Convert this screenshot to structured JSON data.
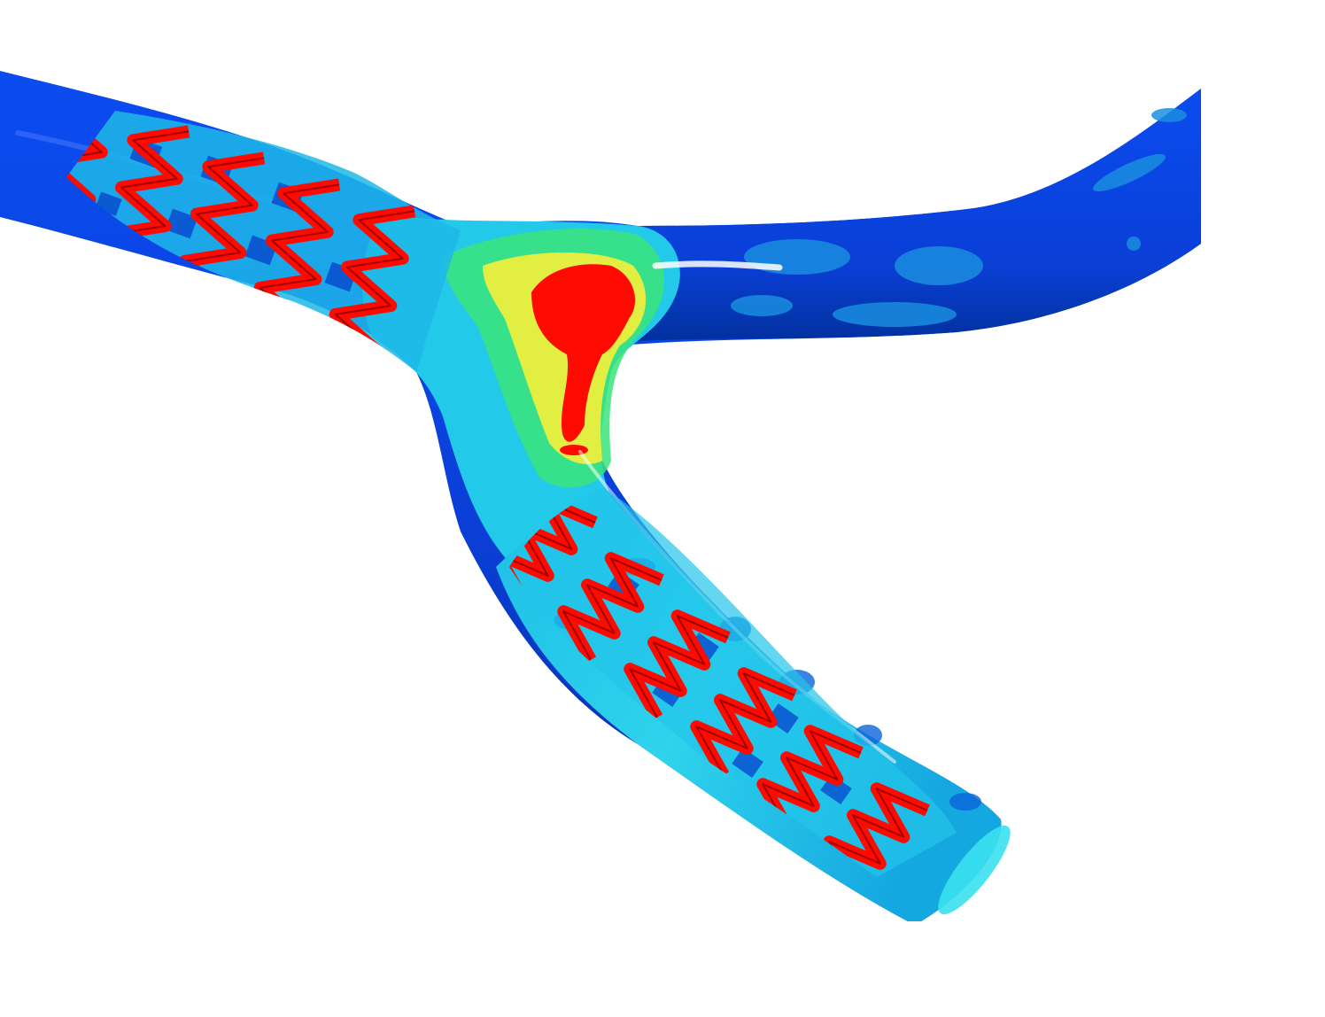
{
  "scene": {
    "subject": "stented-vessel-bifurcation",
    "background_color": "#ffffff"
  },
  "colors": {
    "vessel_base": "#0a3fd6",
    "vessel_dark": "#022a9e",
    "low_mid": "#0a64d8",
    "cyan": "#23c9e8",
    "light_cyan": "#5ff0f0",
    "green": "#3be57a",
    "yellow": "#f5f03a",
    "red": "#ff0a00",
    "dark_red": "#a30000",
    "highlight": "#ffffff"
  },
  "components": {
    "main_vessel": "proximal-vessel-segment",
    "side_branch": "right-branch-segment",
    "distal_branch": "distal-branch-segment",
    "stent_proximal": "proximal-stent-struts",
    "stent_distal": "distal-stent-struts",
    "hotspot": "carina-high-stress-region"
  }
}
